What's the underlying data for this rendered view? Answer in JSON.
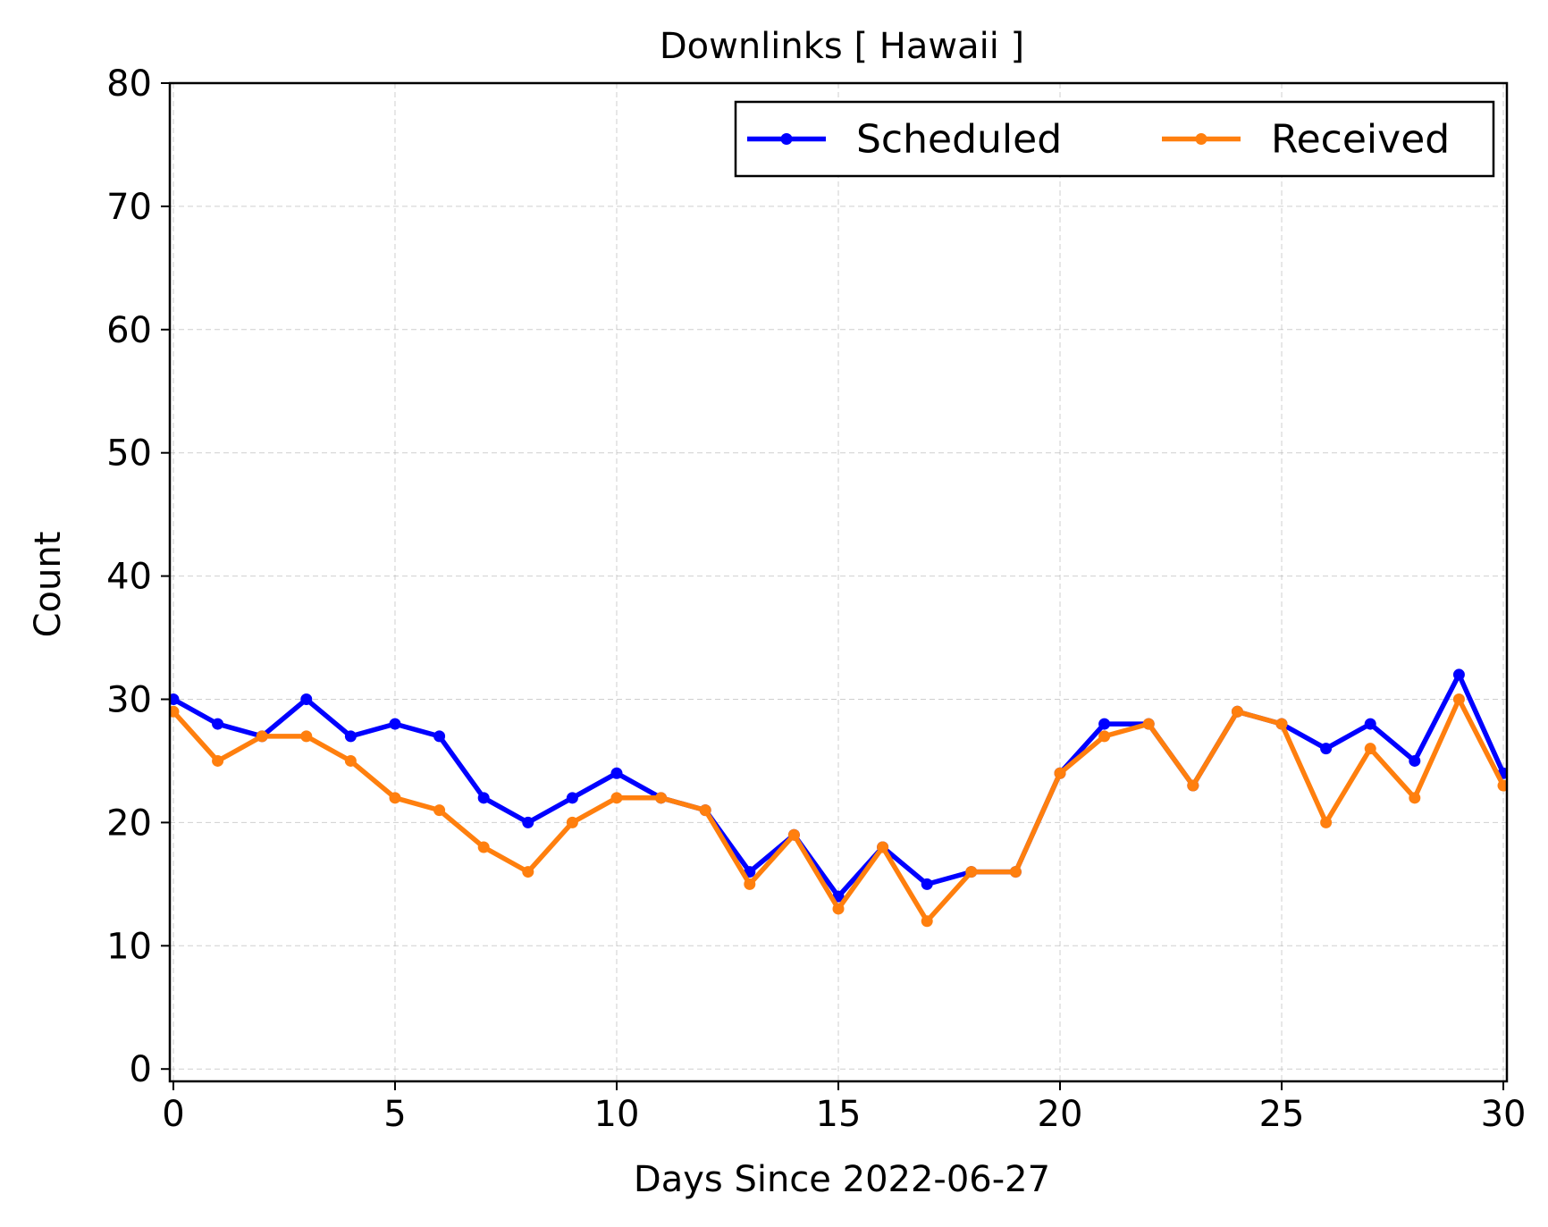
{
  "chart_data": {
    "type": "line",
    "title": "Downlinks [ Hawaii ]",
    "xlabel": "Days Since 2022-06-27",
    "ylabel": "Count",
    "xlim": [
      0,
      30
    ],
    "ylim": [
      0,
      80
    ],
    "xticks": [
      0,
      5,
      10,
      15,
      20,
      25,
      30
    ],
    "yticks": [
      0,
      10,
      20,
      30,
      40,
      50,
      60,
      70,
      80
    ],
    "grid": true,
    "legend_position": "top-right",
    "x": [
      0,
      1,
      2,
      3,
      4,
      5,
      6,
      7,
      8,
      9,
      10,
      11,
      12,
      13,
      14,
      15,
      16,
      17,
      18,
      19,
      20,
      21,
      22,
      23,
      24,
      25,
      26,
      27,
      28,
      29,
      30
    ],
    "series": [
      {
        "name": "Scheduled",
        "color": "#0000ff",
        "values": [
          30,
          28,
          27,
          30,
          27,
          28,
          27,
          22,
          20,
          22,
          24,
          22,
          21,
          16,
          19,
          14,
          18,
          15,
          16,
          16,
          24,
          28,
          28,
          23,
          29,
          28,
          26,
          28,
          25,
          32,
          24
        ]
      },
      {
        "name": "Received",
        "color": "#ff7f0e",
        "values": [
          29,
          25,
          27,
          27,
          25,
          22,
          21,
          18,
          16,
          20,
          22,
          22,
          21,
          15,
          19,
          13,
          18,
          12,
          16,
          16,
          24,
          27,
          28,
          23,
          29,
          28,
          20,
          26,
          22,
          30,
          23
        ]
      }
    ]
  }
}
